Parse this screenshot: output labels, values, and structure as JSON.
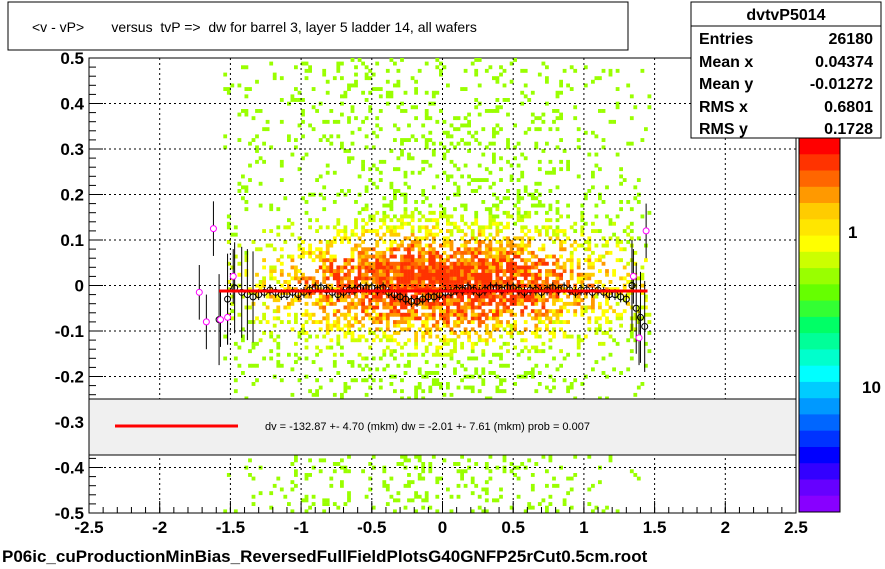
{
  "chart_data": {
    "type": "heatmap",
    "title": "<v - vP>       versus  tvP =>  dw for barrel 3, layer 5 ladder 14, all wafers",
    "xlabel": "",
    "ylabel": "",
    "xlim": [
      -2.5,
      2.5
    ],
    "ylim": [
      -0.5,
      0.5
    ],
    "grid": true,
    "x_ticks": [
      "-2.5",
      "-2",
      "-1.5",
      "-1",
      "-0.5",
      "0",
      "0.5",
      "1",
      "1.5",
      "2",
      "2.5"
    ],
    "y_ticks": [
      "-0.5",
      "-0.4",
      "-0.3",
      "-0.2",
      "-0.1",
      "0",
      "0.1",
      "0.2",
      "0.3",
      "0.4",
      "0.5"
    ],
    "colorbar_labels": [
      "1",
      "10"
    ],
    "stats": {
      "name": "dvtvP5014",
      "rows": [
        {
          "label": "Entries",
          "value": "26180"
        },
        {
          "label": "Mean x",
          "value": "0.04374"
        },
        {
          "label": "Mean y",
          "value": "-0.01272"
        },
        {
          "label": "RMS x",
          "value": "0.6801"
        },
        {
          "label": "RMS y",
          "value": "0.1728"
        }
      ]
    },
    "fit_text": "dv = -132.87 +-  4.70 (mkm) dw =   -2.01 +-  7.61 (mkm) prob = 0.007",
    "fit_line": {
      "x": [
        -1.58,
        1.45
      ],
      "y": [
        -0.012,
        -0.012
      ],
      "color": "#ff0000"
    },
    "profile_black": [
      [
        -1.52,
        -0.03
      ],
      [
        -1.47,
        -0.005
      ],
      [
        -1.42,
        -0.015
      ],
      [
        -1.38,
        -0.02
      ],
      [
        -1.34,
        -0.025
      ],
      [
        -1.3,
        -0.02
      ],
      [
        -1.26,
        -0.015
      ],
      [
        -1.22,
        -0.01
      ],
      [
        -1.18,
        -0.015
      ],
      [
        -1.14,
        -0.02
      ],
      [
        -1.1,
        -0.02
      ],
      [
        -1.06,
        -0.015
      ],
      [
        -1.02,
        -0.02
      ],
      [
        -0.98,
        -0.015
      ],
      [
        -0.94,
        -0.01
      ],
      [
        -0.9,
        -0.005
      ],
      [
        -0.86,
        -0.005
      ],
      [
        -0.82,
        -0.01
      ],
      [
        -0.78,
        -0.015
      ],
      [
        -0.74,
        -0.02
      ],
      [
        -0.7,
        -0.015
      ],
      [
        -0.66,
        -0.01
      ],
      [
        -0.62,
        -0.01
      ],
      [
        -0.58,
        -0.005
      ],
      [
        -0.54,
        -0.005
      ],
      [
        -0.5,
        -0.005
      ],
      [
        -0.46,
        -0.01
      ],
      [
        -0.42,
        -0.005
      ],
      [
        -0.38,
        -0.015
      ],
      [
        -0.34,
        -0.02
      ],
      [
        -0.3,
        -0.025
      ],
      [
        -0.26,
        -0.03
      ],
      [
        -0.22,
        -0.035
      ],
      [
        -0.18,
        -0.035
      ],
      [
        -0.14,
        -0.03
      ],
      [
        -0.1,
        -0.025
      ],
      [
        -0.06,
        -0.025
      ],
      [
        -0.02,
        -0.02
      ],
      [
        0.02,
        -0.015
      ],
      [
        0.06,
        -0.015
      ],
      [
        0.1,
        -0.01
      ],
      [
        0.14,
        -0.01
      ],
      [
        0.18,
        -0.005
      ],
      [
        0.22,
        -0.01
      ],
      [
        0.26,
        -0.015
      ],
      [
        0.3,
        -0.01
      ],
      [
        0.34,
        -0.005
      ],
      [
        0.38,
        -0.005
      ],
      [
        0.42,
        -0.01
      ],
      [
        0.46,
        -0.005
      ],
      [
        0.5,
        -0.005
      ],
      [
        0.54,
        -0.01
      ],
      [
        0.58,
        -0.015
      ],
      [
        0.62,
        -0.01
      ],
      [
        0.66,
        -0.01
      ],
      [
        0.7,
        -0.015
      ],
      [
        0.74,
        -0.01
      ],
      [
        0.78,
        -0.005
      ],
      [
        0.82,
        -0.01
      ],
      [
        0.86,
        -0.005
      ],
      [
        0.9,
        -0.01
      ],
      [
        0.94,
        -0.015
      ],
      [
        0.98,
        -0.01
      ],
      [
        1.02,
        -0.01
      ],
      [
        1.06,
        -0.015
      ],
      [
        1.1,
        -0.01
      ],
      [
        1.14,
        -0.015
      ],
      [
        1.18,
        -0.02
      ],
      [
        1.22,
        -0.02
      ],
      [
        1.26,
        -0.025
      ],
      [
        1.3,
        -0.03
      ],
      [
        1.34,
        0.0
      ],
      [
        1.37,
        -0.05
      ],
      [
        1.4,
        -0.07
      ],
      [
        1.43,
        -0.09
      ],
      [
        -1.58,
        -0.075
      ]
    ],
    "profile_magenta": [
      [
        -1.72,
        -0.015
      ],
      [
        -1.67,
        -0.08
      ],
      [
        -1.62,
        0.125
      ],
      [
        -1.57,
        -0.075
      ],
      [
        -1.52,
        -0.07
      ],
      [
        -1.48,
        0.02
      ],
      [
        1.35,
        0.02
      ],
      [
        1.39,
        -0.115
      ],
      [
        1.44,
        0.12
      ]
    ]
  }
}
